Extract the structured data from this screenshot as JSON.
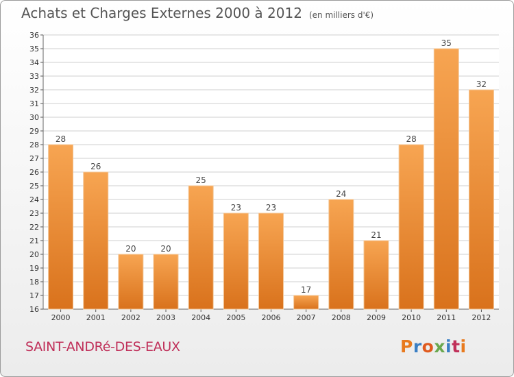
{
  "header": {
    "title": "Achats et Charges Externes 2000 à 2012",
    "subtitle": "(en milliers d'€)"
  },
  "footer": {
    "commune": "SAINT-ANDRé-DES-EAUX",
    "logo": "Proxiti",
    "logo_colors": [
      "#e87a1e",
      "#3a7fc4",
      "#e05a1e",
      "#6aa84f",
      "#3a7fc4",
      "#c0305a",
      "#e87a1e"
    ]
  },
  "chart_data": {
    "type": "bar",
    "title": "Achats et Charges Externes 2000 à 2012",
    "subtitle": "(en milliers d'€)",
    "categories": [
      "2000",
      "2001",
      "2002",
      "2003",
      "2004",
      "2005",
      "2006",
      "2007",
      "2008",
      "2009",
      "2010",
      "2011",
      "2012"
    ],
    "values": [
      28,
      26,
      20,
      20,
      25,
      23,
      23,
      17,
      24,
      21,
      28,
      35,
      32
    ],
    "ylim": [
      16,
      36
    ],
    "yticks": [
      16,
      17,
      18,
      19,
      20,
      21,
      22,
      23,
      24,
      25,
      26,
      27,
      28,
      29,
      30,
      31,
      32,
      33,
      34,
      35,
      36
    ],
    "grid": true,
    "bar_color_top": "#f7a552",
    "bar_color_bottom": "#d9721c"
  }
}
